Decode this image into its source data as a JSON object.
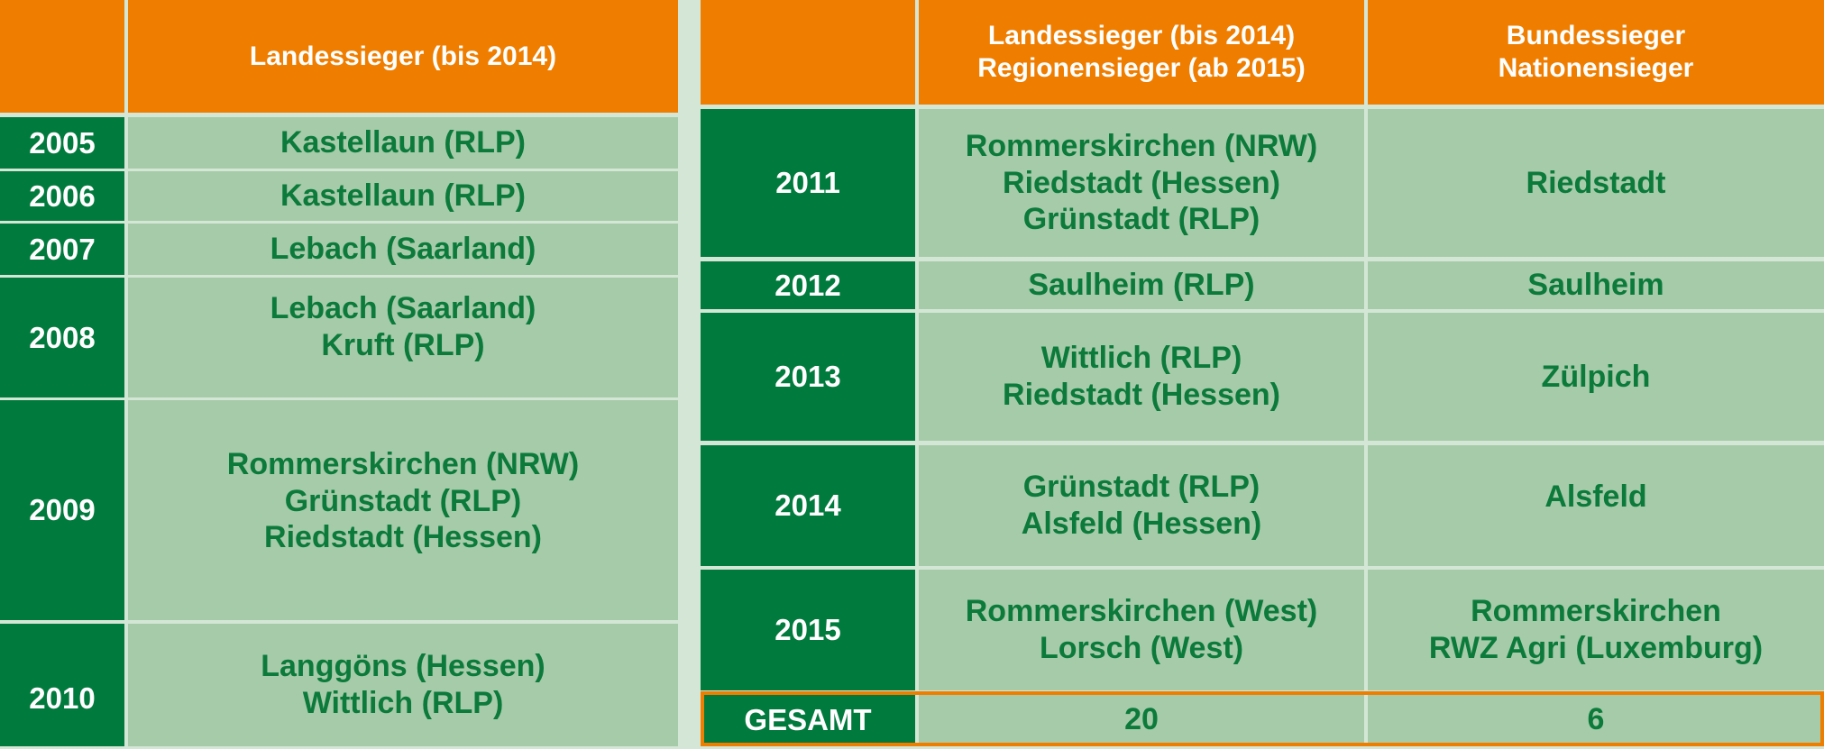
{
  "left_table": {
    "header": "Landessieger (bis 2014)",
    "rows": [
      {
        "year": "2005",
        "winners": [
          "Kastellaun (RLP)"
        ]
      },
      {
        "year": "2006",
        "winners": [
          "Kastellaun (RLP)"
        ]
      },
      {
        "year": "2007",
        "winners": [
          "Lebach (Saarland)"
        ]
      },
      {
        "year": "2008",
        "winners": [
          "Lebach (Saarland)",
          "Kruft (RLP)"
        ]
      },
      {
        "year": "2009",
        "winners": [
          "Rommerskirchen (NRW)",
          "Grünstadt (RLP)",
          "Riedstadt (Hessen)"
        ]
      },
      {
        "year": "2010",
        "winners": [
          "Langgöns (Hessen)",
          "Wittlich (RLP)"
        ]
      }
    ]
  },
  "right_table": {
    "header_regional": [
      "Landessieger (bis 2014)",
      "Regionensieger (ab 2015)"
    ],
    "header_national": [
      "Bundessieger",
      "Nationensieger"
    ],
    "rows": [
      {
        "year": "2011",
        "regional": [
          "Rommerskirchen (NRW)",
          "Riedstadt (Hessen)",
          "Grünstadt (RLP)"
        ],
        "national": [
          "Riedstadt"
        ]
      },
      {
        "year": "2012",
        "regional": [
          "Saulheim (RLP)"
        ],
        "national": [
          "Saulheim"
        ]
      },
      {
        "year": "2013",
        "regional": [
          "Wittlich (RLP)",
          "Riedstadt (Hessen)"
        ],
        "national": [
          "Zülpich"
        ]
      },
      {
        "year": "2014",
        "regional": [
          "Grünstadt (RLP)",
          "Alsfeld (Hessen)"
        ],
        "national": [
          "Alsfeld"
        ]
      },
      {
        "year": "2015",
        "regional": [
          "Rommerskirchen (West)",
          "Lorsch (West)"
        ],
        "national": [
          "Rommerskirchen",
          "RWZ Agri (Luxemburg)"
        ]
      }
    ],
    "total": {
      "label": "GESAMT",
      "regional": "20",
      "national": "6"
    }
  },
  "colors": {
    "orange": "#ef7d00",
    "dark_green": "#007a3d",
    "light_green": "#a6cba8",
    "text_green": "#0b7a3b"
  }
}
